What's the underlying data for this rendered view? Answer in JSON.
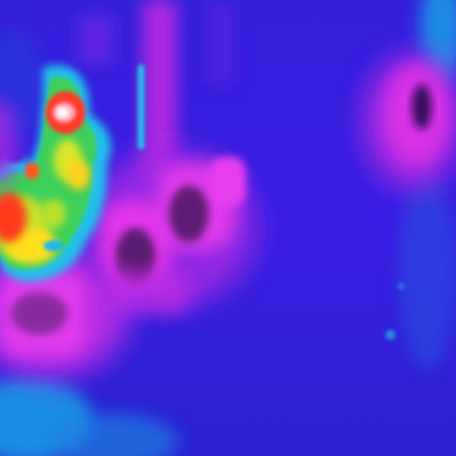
{
  "image": {
    "kind": "thermal-camera-frame",
    "palette": [
      "#0b1fb8",
      "#2a1bd8",
      "#3d22e6",
      "#8a27e8",
      "#d92ee0",
      "#f13aee",
      "#25b8e6",
      "#39d36a",
      "#c8e62a",
      "#ffd91a",
      "#ff3a1a",
      "#ffffff"
    ],
    "visible_text": []
  }
}
